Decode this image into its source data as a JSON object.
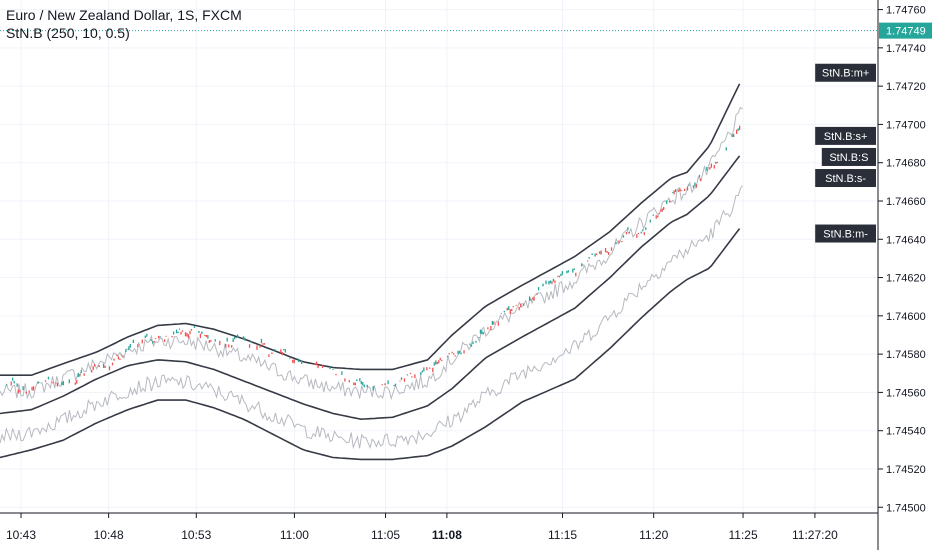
{
  "header": {
    "title": "Euro / New Zealand Dollar, 1S, FXCM",
    "study": "StN.B (250, 10, 0.5)"
  },
  "colors": {
    "up": "#26a69a",
    "down": "#ef5350",
    "band": "#363a45",
    "inner": "#b7b9c0",
    "price_line": "#26a69a",
    "label_bg": "#2a2e39",
    "grid": "#f0f3fa",
    "text": "#131722"
  },
  "chart_data": {
    "type": "line",
    "title": "Euro / New Zealand Dollar, 1S, FXCM",
    "y_ticks": [
      "1.74500",
      "1.74520",
      "1.74540",
      "1.74560",
      "1.74580",
      "1.74600",
      "1.74620",
      "1.74640",
      "1.74660",
      "1.74680",
      "1.74700",
      "1.74720",
      "1.74740",
      "1.74760"
    ],
    "x_ticks": [
      {
        "label": "10:43",
        "t": 0.0
      },
      {
        "label": "10:48",
        "t": 5.0
      },
      {
        "label": "10:53",
        "t": 10.0
      },
      {
        "label": "11:00",
        "t": 15.6
      },
      {
        "label": "11:05",
        "t": 20.8
      },
      {
        "label": "11:08",
        "t": 24.3,
        "bold": true
      },
      {
        "label": "11:15",
        "t": 30.9
      },
      {
        "label": "11:20",
        "t": 36.1
      },
      {
        "label": "11:25",
        "t": 41.2
      },
      {
        "label": "11:27:20",
        "t": 45.3
      }
    ],
    "ylim": [
      1.74497,
      1.74765
    ],
    "xlim": [
      -1.2,
      48.9
    ],
    "last_price": {
      "label": "1.74749",
      "value": 1.74749
    },
    "band_labels": [
      {
        "text": "StN.B:m+",
        "value": 1.74727
      },
      {
        "text": "StN.B:s+",
        "value": 1.74694
      },
      {
        "text": "StN.B:S",
        "value": 1.74683
      },
      {
        "text": "StN.B:s-",
        "value": 1.74672
      },
      {
        "text": "StN.B:m-",
        "value": 1.74643
      }
    ],
    "series": [
      {
        "key": "upper",
        "points": [
          [
            -1.2,
            1.74569
          ],
          [
            0.6,
            1.74569
          ],
          [
            2.4,
            1.74575
          ],
          [
            4.3,
            1.74581
          ],
          [
            6.1,
            1.74589
          ],
          [
            7.8,
            1.74595
          ],
          [
            9.4,
            1.74596
          ],
          [
            11.0,
            1.74593
          ],
          [
            12.7,
            1.74588
          ],
          [
            14.4,
            1.74582
          ],
          [
            16.1,
            1.74576
          ],
          [
            17.8,
            1.74573
          ],
          [
            19.4,
            1.74572
          ],
          [
            21.2,
            1.74572
          ],
          [
            23.2,
            1.74577
          ],
          [
            24.6,
            1.7459
          ],
          [
            26.5,
            1.74605
          ],
          [
            28.6,
            1.74616
          ],
          [
            31.6,
            1.74631
          ],
          [
            33.6,
            1.74644
          ],
          [
            35.4,
            1.74659
          ],
          [
            37.1,
            1.74672
          ],
          [
            38.0,
            1.74675
          ],
          [
            39.3,
            1.74689
          ],
          [
            41.2,
            1.74725
          ]
        ]
      },
      {
        "key": "mid",
        "points": [
          [
            -1.2,
            1.74549
          ],
          [
            0.6,
            1.74551
          ],
          [
            2.4,
            1.74558
          ],
          [
            4.3,
            1.74567
          ],
          [
            6.1,
            1.74574
          ],
          [
            7.8,
            1.74577
          ],
          [
            9.4,
            1.74576
          ],
          [
            11.0,
            1.74572
          ],
          [
            12.7,
            1.74566
          ],
          [
            14.4,
            1.7456
          ],
          [
            16.1,
            1.74554
          ],
          [
            17.8,
            1.74549
          ],
          [
            19.4,
            1.74546
          ],
          [
            21.2,
            1.74547
          ],
          [
            23.2,
            1.74553
          ],
          [
            24.6,
            1.74562
          ],
          [
            26.5,
            1.74578
          ],
          [
            28.6,
            1.74589
          ],
          [
            31.6,
            1.74604
          ],
          [
            33.6,
            1.7462
          ],
          [
            35.4,
            1.74636
          ],
          [
            37.1,
            1.74649
          ],
          [
            38.0,
            1.74653
          ],
          [
            39.3,
            1.74663
          ],
          [
            41.2,
            1.74686
          ]
        ]
      },
      {
        "key": "lower",
        "points": [
          [
            -1.2,
            1.74526
          ],
          [
            0.6,
            1.7453
          ],
          [
            2.4,
            1.74535
          ],
          [
            4.3,
            1.74544
          ],
          [
            6.1,
            1.74551
          ],
          [
            7.8,
            1.74556
          ],
          [
            9.4,
            1.74556
          ],
          [
            11.0,
            1.74552
          ],
          [
            12.7,
            1.74546
          ],
          [
            14.4,
            1.74538
          ],
          [
            16.1,
            1.7453
          ],
          [
            17.8,
            1.74526
          ],
          [
            19.4,
            1.74525
          ],
          [
            21.2,
            1.74525
          ],
          [
            23.2,
            1.74527
          ],
          [
            24.6,
            1.74532
          ],
          [
            26.5,
            1.74542
          ],
          [
            28.6,
            1.74555
          ],
          [
            31.6,
            1.74567
          ],
          [
            33.6,
            1.74583
          ],
          [
            35.4,
            1.74599
          ],
          [
            37.1,
            1.74613
          ],
          [
            38.0,
            1.74619
          ],
          [
            39.3,
            1.74625
          ],
          [
            41.2,
            1.74648
          ]
        ]
      }
    ]
  }
}
